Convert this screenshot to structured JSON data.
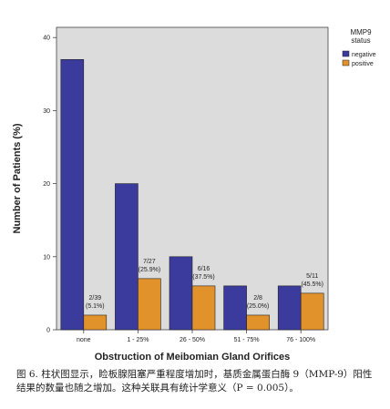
{
  "chart_data": {
    "type": "bar",
    "ylabel": "Number of Patients (%)",
    "xlabel": "Obstruction of Meibomian Gland Orifices",
    "legend_title": [
      "MMP9",
      "status"
    ],
    "legend": "right",
    "categories": [
      "none",
      "1 - 25%",
      "26 - 50%",
      "51 - 75%",
      "76 - 100%"
    ],
    "series": [
      {
        "name": "negative",
        "color": "#3b3b9d",
        "values": [
          37,
          20,
          10,
          6,
          6
        ]
      },
      {
        "name": "positive",
        "color": "#e2922b",
        "values": [
          2,
          7,
          6,
          2,
          5
        ],
        "value_labels": [
          [
            "2/39",
            "(5.1%)"
          ],
          [
            "7/27",
            "(25.9%)"
          ],
          [
            "6/16",
            "(37.5%)"
          ],
          [
            "2/8",
            "(25.0%)"
          ],
          [
            "5/11",
            "(45.5%)"
          ]
        ]
      }
    ],
    "ylim": [
      0,
      41.4
    ],
    "yticks": [
      0,
      10,
      20,
      30,
      40
    ]
  },
  "caption": "图 6. 柱状图显示，睑板腺阻塞严重程度增加时，基质金属蛋白酶 9（MMP-9）阳性结果的数量也随之增加。这种关联具有统计学意义（P = 0.005）。"
}
